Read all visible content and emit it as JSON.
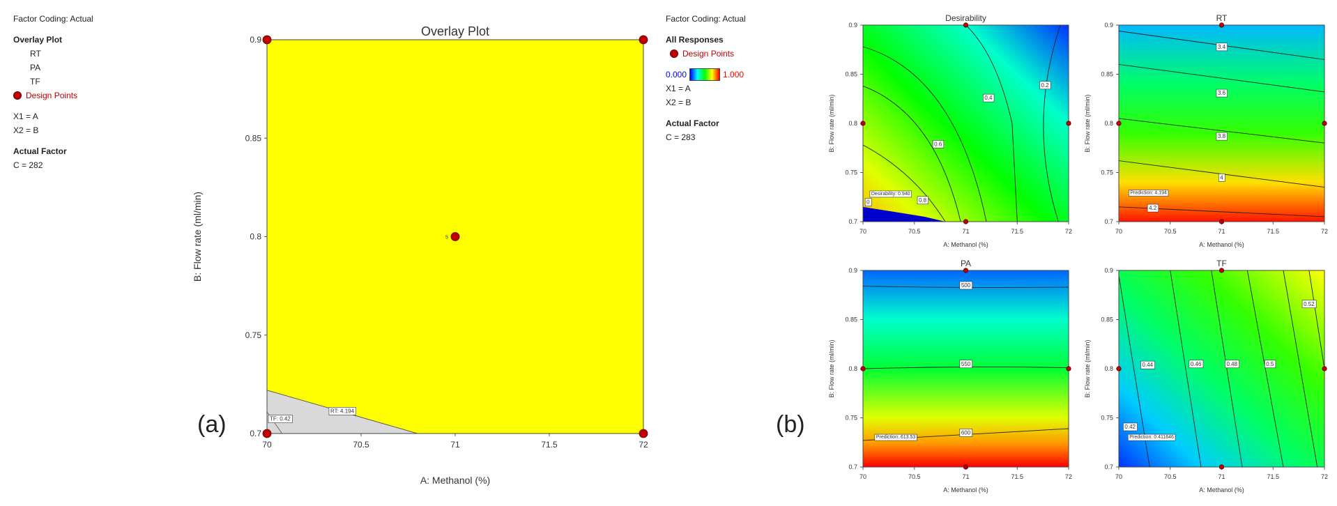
{
  "left_legend": {
    "factor_coding": "Factor Coding: Actual",
    "overlay_title": "Overlay Plot",
    "responses": [
      "RT",
      "PA",
      "TF"
    ],
    "design_points": "Design Points",
    "x1": "X1 = A",
    "x2": "X2 = B",
    "actual_factor": "Actual Factor",
    "c_value": "C = 282"
  },
  "mid_legend": {
    "factor_coding": "Factor Coding: Actual",
    "all_responses": "All Responses",
    "design_points": "Design Points",
    "scale_min": "0.000",
    "scale_max": "1.000",
    "x1": "X1 = A",
    "x2": "X2 = B",
    "actual_factor": "Actual Factor",
    "c_value": "C = 283"
  },
  "labels": {
    "a": "(a)",
    "b": "(b)"
  },
  "colors": {
    "overlay": "#ffff00",
    "shaded": "#d9d9d9",
    "point": "#c00000",
    "scale_min": "#0000ff",
    "scale_max": "#ff0000"
  },
  "chart_data": [
    {
      "type": "contour",
      "title": "Overlay Plot",
      "xlabel": "A: Methanol (%)",
      "ylabel": "B: Flow rate (ml/min)",
      "xlim": [
        70,
        72
      ],
      "ylim": [
        0.7,
        0.9
      ],
      "xticks": [
        "70",
        "70.5",
        "71",
        "71.5",
        "72"
      ],
      "yticks": [
        "0.7",
        "0.75",
        "0.8",
        "0.85",
        "0.9"
      ],
      "design_points": [
        [
          70,
          0.9
        ],
        [
          72,
          0.9
        ],
        [
          71,
          0.8
        ],
        [
          70,
          0.7
        ],
        [
          72,
          0.7
        ]
      ],
      "center_point_label": "5",
      "shaded_region": [
        [
          70,
          0.7
        ],
        [
          70,
          0.722
        ],
        [
          70.8,
          0.7
        ]
      ],
      "contours": [
        {
          "label": "TF: 0.42",
          "x": [
            70,
            70.08
          ],
          "y": [
            0.711,
            0.7
          ]
        },
        {
          "label": "RT: 4.194",
          "x": [
            70,
            70.8
          ],
          "y": [
            0.722,
            0.7
          ]
        }
      ]
    },
    {
      "type": "contour",
      "title": "Desirability",
      "xlabel": "A: Methanol (%)",
      "ylabel": "B: Flow rate (ml/min)",
      "xlim": [
        70,
        72
      ],
      "ylim": [
        0.7,
        0.9
      ],
      "xticks": [
        "70",
        "70.5",
        "71",
        "71.5",
        "72"
      ],
      "yticks": [
        "0.7",
        "0.75",
        "0.8",
        "0.85",
        "0.9"
      ],
      "contour_labels": [
        "0.2",
        "0.4",
        "0.6",
        "0.8",
        "0"
      ],
      "prediction": "Desirability: 0.940",
      "design_points": [
        [
          71,
          0.9
        ],
        [
          70,
          0.8
        ],
        [
          72,
          0.8
        ],
        [
          71,
          0.7
        ]
      ]
    },
    {
      "type": "contour",
      "title": "RT",
      "xlabel": "A: Methanol (%)",
      "ylabel": "B: Flow rate (ml/min)",
      "xlim": [
        70,
        72
      ],
      "ylim": [
        0.7,
        0.9
      ],
      "xticks": [
        "70",
        "70.5",
        "71",
        "71.5",
        "72"
      ],
      "yticks": [
        "0.7",
        "0.75",
        "0.8",
        "0.85",
        "0.9"
      ],
      "contour_labels": [
        "3.4",
        "3.6",
        "3.8",
        "4",
        "4.2"
      ],
      "prediction": "Prediction: 4.194",
      "design_points": [
        [
          71,
          0.9
        ],
        [
          70,
          0.8
        ],
        [
          72,
          0.8
        ],
        [
          71,
          0.7
        ]
      ]
    },
    {
      "type": "contour",
      "title": "PA",
      "xlabel": "A: Methanol (%)",
      "ylabel": "B: Flow rate (ml/min)",
      "xlim": [
        70,
        72
      ],
      "ylim": [
        0.7,
        0.9
      ],
      "xticks": [
        "70",
        "70.5",
        "71",
        "71.5",
        "72"
      ],
      "yticks": [
        "0.7",
        "0.75",
        "0.8",
        "0.85",
        "0.9"
      ],
      "contour_labels": [
        "500",
        "550",
        "600"
      ],
      "prediction": "Prediction: 613.53",
      "design_points": [
        [
          71,
          0.9
        ],
        [
          70,
          0.8
        ],
        [
          72,
          0.8
        ],
        [
          71,
          0.7
        ]
      ]
    },
    {
      "type": "contour",
      "title": "TF",
      "xlabel": "A: Methanol (%)",
      "ylabel": "B: Flow rate (ml/min)",
      "xlim": [
        70,
        72
      ],
      "ylim": [
        0.7,
        0.9
      ],
      "xticks": [
        "70",
        "70.5",
        "71",
        "71.5",
        "72"
      ],
      "yticks": [
        "0.7",
        "0.75",
        "0.8",
        "0.85",
        "0.9"
      ],
      "contour_labels": [
        "0.42",
        "0.44",
        "0.46",
        "0.48",
        "0.5",
        "0.52"
      ],
      "prediction": "Prediction: 0.411646",
      "design_points": [
        [
          71,
          0.9
        ],
        [
          70,
          0.8
        ],
        [
          72,
          0.8
        ],
        [
          71,
          0.7
        ]
      ]
    }
  ]
}
